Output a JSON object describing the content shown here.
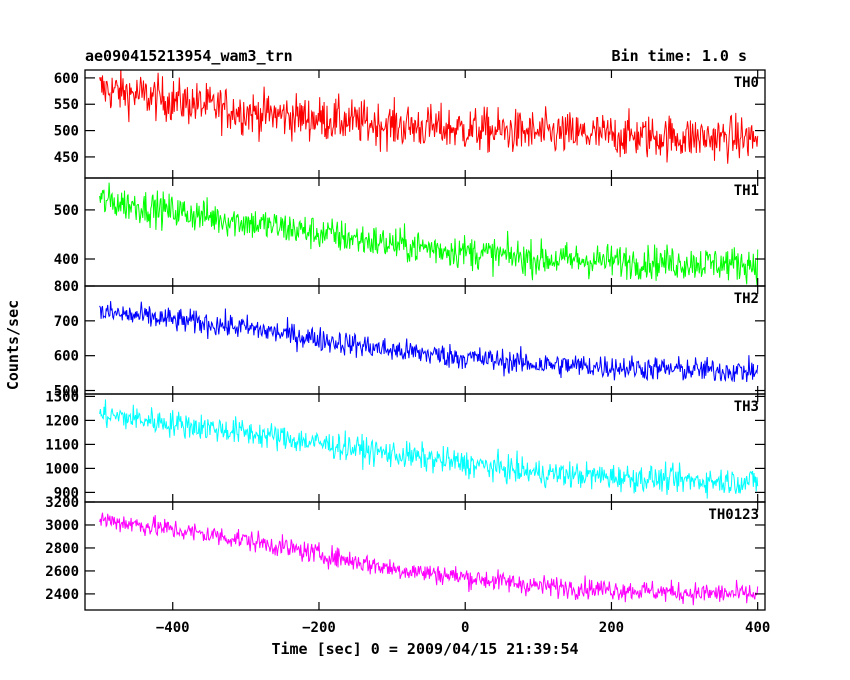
{
  "header": {
    "title": "ae090415213954_wam3_trn",
    "bin_time": "Bin time: 1.0 s"
  },
  "chart_data": {
    "type": "line",
    "xlabel": "Time [sec] 0 = 2009/04/15 21:39:54",
    "ylabel": "Counts/sec",
    "xlim": [
      -520,
      410
    ],
    "x_ticks": [
      -400,
      -200,
      0,
      200,
      400
    ],
    "x_tick_labels": [
      "−400",
      "−200",
      "0",
      "200",
      "400"
    ],
    "bin_seconds": 1.0,
    "x_start": -500,
    "x_end": 400,
    "panels": [
      {
        "label": "TH0",
        "color": "#ff0000",
        "ylim": [
          410,
          615
        ],
        "y_ticks": [
          450,
          500,
          550,
          600
        ],
        "trend": [
          [
            -500,
            580
          ],
          [
            -300,
            535
          ],
          [
            -100,
            510
          ],
          [
            100,
            495
          ],
          [
            300,
            487
          ],
          [
            400,
            485
          ]
        ],
        "noise": 30
      },
      {
        "label": "TH1",
        "color": "#00ff00",
        "ylim": [
          345,
          565
        ],
        "y_ticks": [
          400,
          500
        ],
        "trend": [
          [
            -500,
            520
          ],
          [
            -300,
            475
          ],
          [
            -100,
            430
          ],
          [
            100,
            400
          ],
          [
            300,
            392
          ],
          [
            400,
            390
          ]
        ],
        "noise": 25
      },
      {
        "label": "TH2",
        "color": "#0000ff",
        "ylim": [
          490,
          800
        ],
        "y_ticks": [
          500,
          600,
          700,
          800
        ],
        "trend": [
          [
            -500,
            725
          ],
          [
            -300,
            680
          ],
          [
            -100,
            615
          ],
          [
            100,
            575
          ],
          [
            300,
            560
          ],
          [
            400,
            555
          ]
        ],
        "noise": 25
      },
      {
        "label": "TH3",
        "color": "#00ffff",
        "ylim": [
          860,
          1310
        ],
        "y_ticks": [
          900,
          1000,
          1100,
          1200,
          1300
        ],
        "trend": [
          [
            -500,
            1225
          ],
          [
            -300,
            1150
          ],
          [
            -100,
            1060
          ],
          [
            100,
            980
          ],
          [
            300,
            950
          ],
          [
            400,
            945
          ]
        ],
        "noise": 40
      },
      {
        "label": "TH0123",
        "color": "#ff00ff",
        "ylim": [
          2260,
          3200
        ],
        "y_ticks": [
          2400,
          2600,
          2800,
          3000,
          3200
        ],
        "trend": [
          [
            -500,
            3050
          ],
          [
            -300,
            2870
          ],
          [
            -100,
            2620
          ],
          [
            100,
            2470
          ],
          [
            300,
            2410
          ],
          [
            400,
            2395
          ]
        ],
        "noise": 65
      }
    ]
  }
}
